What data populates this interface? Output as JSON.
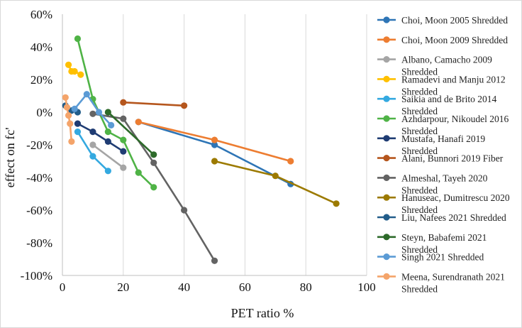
{
  "chart_data": {
    "type": "line",
    "title": "",
    "xlabel": "PET ratio %",
    "ylabel": "effect on fc'",
    "xlim": [
      0,
      100
    ],
    "ylim": [
      -100,
      60
    ],
    "x_ticks": [
      "0",
      "20",
      "40",
      "60",
      "80",
      "100"
    ],
    "y_ticks": [
      "60%",
      "40%",
      "20%",
      "0%",
      "-20%",
      "-40%",
      "-60%",
      "-80%",
      "-100%"
    ],
    "grid": "vertical",
    "legend_position": "right",
    "series": [
      {
        "name": "Choi, Moon 2005 Shredded",
        "color": "#2e75b6",
        "points": [
          [
            25,
            -6
          ],
          [
            50,
            -20
          ],
          [
            75,
            -44
          ]
        ]
      },
      {
        "name": "Choi, Moon 2009 Shredded",
        "color": "#ed7d31",
        "points": [
          [
            25,
            -6
          ],
          [
            50,
            -17
          ],
          [
            75,
            -30
          ]
        ]
      },
      {
        "name": "Albano, Camacho 2009 Shredded",
        "color": "#a5a5a5",
        "points": [
          [
            10,
            -20
          ],
          [
            20,
            -34
          ]
        ]
      },
      {
        "name": "Ramadevi and Manju 2012 Shredded",
        "color": "#ffc000",
        "points": [
          [
            2,
            29
          ],
          [
            3,
            25
          ],
          [
            4,
            25
          ],
          [
            6,
            23
          ]
        ]
      },
      {
        "name": "Saikia and de Brito 2014 Shredded",
        "color": "#34a9e0",
        "points": [
          [
            5,
            -12
          ],
          [
            10,
            -27
          ],
          [
            15,
            -36
          ]
        ]
      },
      {
        "name": "Azhdarpour, Nikoudel 2016 Shredded",
        "color": "#4fb346",
        "points": [
          [
            5,
            45
          ],
          [
            10,
            8
          ],
          [
            15,
            -12
          ],
          [
            20,
            -17
          ],
          [
            25,
            -37
          ],
          [
            30,
            -46
          ]
        ]
      },
      {
        "name": "Mustafa, Hanafi 2019 Shredded",
        "color": "#1f3c73",
        "points": [
          [
            5,
            -7
          ],
          [
            10,
            -12
          ],
          [
            15,
            -18
          ],
          [
            20,
            -24
          ]
        ]
      },
      {
        "name": "Alani, Bunnori 2019 Fiber",
        "color": "#b5561d",
        "points": [
          [
            20,
            6
          ],
          [
            40,
            4
          ]
        ]
      },
      {
        "name": "Almeshal, Tayeh 2020 Shredded",
        "color": "#636363",
        "points": [
          [
            10,
            -1
          ],
          [
            20,
            -4
          ],
          [
            30,
            -31
          ],
          [
            40,
            -60
          ],
          [
            50,
            -91
          ]
        ]
      },
      {
        "name": "Hanuseac, Dumitrescu 2020 Shredded",
        "color": "#9c7a00",
        "points": [
          [
            50,
            -30
          ],
          [
            70,
            -39
          ],
          [
            90,
            -56
          ]
        ]
      },
      {
        "name": "Liu, Nafees 2021 Shredded",
        "color": "#225d8a",
        "points": [
          [
            1,
            4
          ],
          [
            3,
            1
          ],
          [
            5,
            0
          ]
        ]
      },
      {
        "name": "Steyn, Babafemi 2021 Shredded",
        "color": "#2d6a2a",
        "points": [
          [
            15,
            0
          ],
          [
            30,
            -26
          ]
        ]
      },
      {
        "name": "Singh 2021 Shredded",
        "color": "#5b9bd5",
        "points": [
          [
            4,
            2
          ],
          [
            8,
            11
          ],
          [
            12,
            0
          ],
          [
            16,
            -8
          ]
        ]
      },
      {
        "name": "Meena, Surendranath 2021 Shredded",
        "color": "#f4a46a",
        "points": [
          [
            1,
            9
          ],
          [
            1.5,
            3
          ],
          [
            2,
            -2
          ],
          [
            2.5,
            -7
          ],
          [
            3,
            -18
          ]
        ]
      }
    ]
  }
}
